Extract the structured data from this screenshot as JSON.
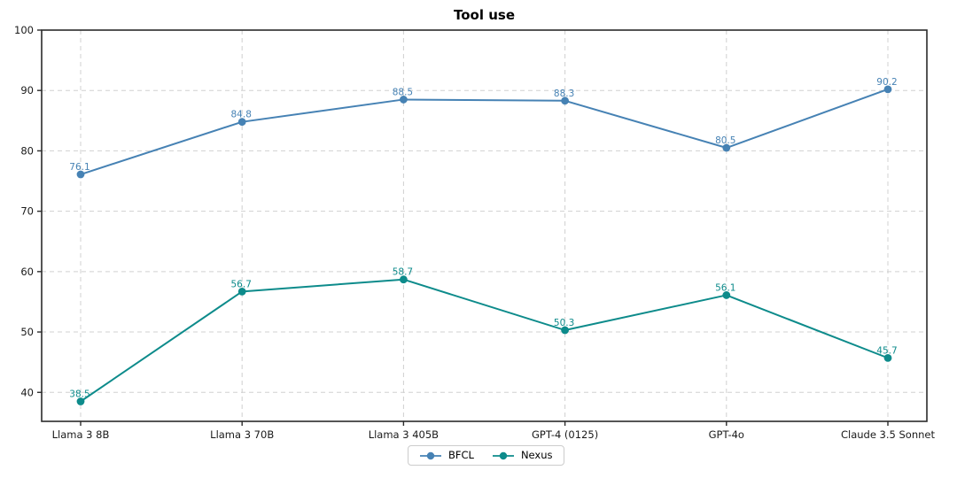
{
  "title": "Tool use",
  "chart_data": {
    "type": "line",
    "title": "Tool use",
    "categories": [
      "Llama 3 8B",
      "Llama 3 70B",
      "Llama 3 405B",
      "GPT-4 (0125)",
      "GPT-4o",
      "Claude 3.5 Sonnet"
    ],
    "series": [
      {
        "name": "BFCL",
        "color": "#4682b4",
        "values": [
          76.1,
          84.8,
          88.5,
          88.3,
          80.5,
          90.2
        ]
      },
      {
        "name": "Nexus",
        "color": "#0d8b8b",
        "values": [
          38.5,
          56.7,
          58.7,
          50.3,
          56.1,
          45.7
        ]
      }
    ],
    "xlabel": "",
    "ylabel": "",
    "ylim": [
      35.2,
      100
    ],
    "yticks": [
      40,
      50,
      60,
      70,
      80,
      90,
      100
    ],
    "grid": true,
    "grid_style": "dashed",
    "legend_position": "bottom-center",
    "colors": {
      "grid": "#d0d0d0",
      "spine": "#2b2b2b",
      "tick_label": "#1a1a1a",
      "background": "#ffffff"
    }
  }
}
